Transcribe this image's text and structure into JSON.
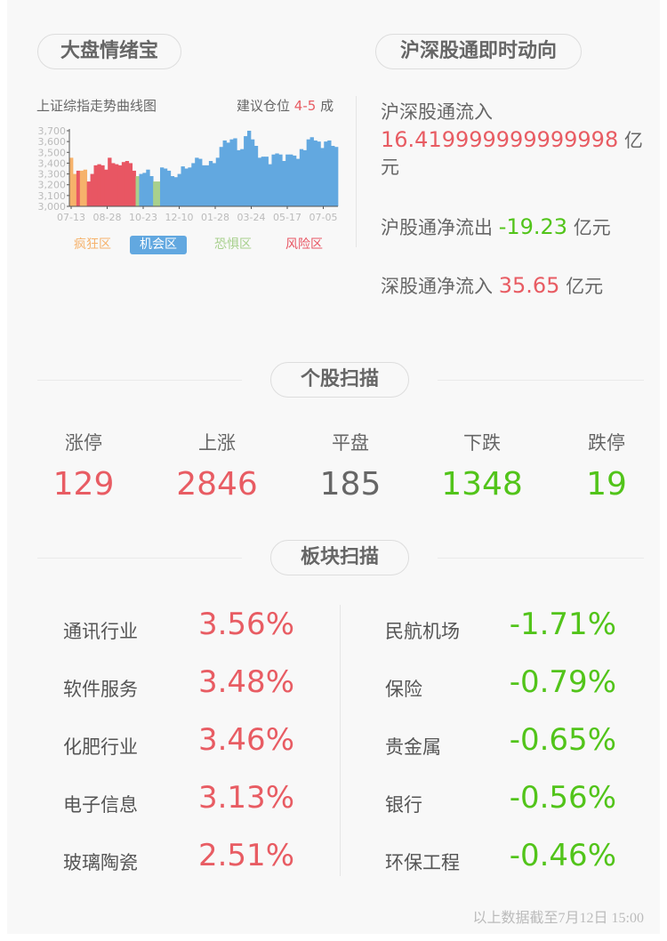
{
  "left_panel": {
    "title": "大盘情绪宝",
    "chart_title": "上证综指走势曲线图",
    "suggest_label": "建议仓位",
    "suggest_value": "4-5",
    "suggest_unit": "成",
    "legend": [
      {
        "label": "疯狂区",
        "color": "#f6b26b"
      },
      {
        "label": "机会区",
        "color": "#62a8e0"
      },
      {
        "label": "恐惧区",
        "color": "#a8d08d"
      },
      {
        "label": "风险区",
        "color": "#e85663"
      }
    ]
  },
  "chart_data": {
    "type": "area",
    "ylim": [
      3000,
      3700
    ],
    "yticks": [
      "3,700",
      "3,600",
      "3,500",
      "3,400",
      "3,300",
      "3,200",
      "3,100",
      "3,000"
    ],
    "xticks": [
      "07-13",
      "08-28",
      "10-23",
      "12-10",
      "01-28",
      "03-24",
      "05-17",
      "07-05"
    ],
    "zone_colors": {
      "crazy": "#f6b26b",
      "opportunity": "#62a8e0",
      "fear": "#a8d08d",
      "risk": "#e85663"
    },
    "values": [
      3450,
      3300,
      3330,
      3330,
      3340,
      3230,
      3300,
      3380,
      3390,
      3380,
      3340,
      3450,
      3400,
      3390,
      3380,
      3410,
      3420,
      3400,
      3330,
      3280,
      3300,
      3310,
      3340,
      3280,
      3230,
      3230,
      3360,
      3350,
      3330,
      3280,
      3270,
      3300,
      3370,
      3350,
      3360,
      3400,
      3450,
      3440,
      3380,
      3380,
      3420,
      3400,
      3450,
      3550,
      3610,
      3590,
      3620,
      3630,
      3520,
      3530,
      3650,
      3700,
      3620,
      3560,
      3450,
      3460,
      3460,
      3390,
      3480,
      3490,
      3480,
      3420,
      3480,
      3480,
      3470,
      3440,
      3530,
      3520,
      3620,
      3640,
      3610,
      3600,
      3540,
      3600,
      3610,
      3560,
      3550
    ],
    "zones": [
      "crazy",
      "crazy",
      "risk",
      "crazy",
      "crazy",
      "risk",
      "risk",
      "risk",
      "risk",
      "risk",
      "risk",
      "risk",
      "risk",
      "risk",
      "risk",
      "risk",
      "risk",
      "risk",
      "risk",
      "fear",
      "opportunity",
      "opportunity",
      "opportunity",
      "opportunity",
      "fear",
      "fear",
      "opportunity",
      "opportunity",
      "opportunity",
      "opportunity",
      "opportunity",
      "opportunity",
      "opportunity",
      "opportunity",
      "opportunity",
      "opportunity",
      "opportunity",
      "opportunity",
      "opportunity",
      "opportunity",
      "opportunity",
      "opportunity",
      "opportunity",
      "opportunity",
      "opportunity",
      "opportunity",
      "opportunity",
      "opportunity",
      "opportunity",
      "opportunity",
      "opportunity",
      "opportunity",
      "opportunity",
      "opportunity",
      "opportunity",
      "opportunity",
      "opportunity",
      "opportunity",
      "opportunity",
      "opportunity",
      "opportunity",
      "opportunity",
      "opportunity",
      "opportunity",
      "opportunity",
      "opportunity",
      "opportunity",
      "opportunity",
      "opportunity",
      "opportunity",
      "opportunity",
      "opportunity",
      "opportunity",
      "opportunity",
      "opportunity",
      "opportunity",
      "opportunity"
    ]
  },
  "right_panel": {
    "title": "沪深股通即时动向",
    "total_label": "沪深股通流入",
    "total_value": "16.419999999999998",
    "unit": "亿元",
    "sh_label": "沪股通净流出",
    "sh_value": "-19.23",
    "sz_label": "深股通净流入",
    "sz_value": "35.65"
  },
  "stocks": {
    "title": "个股扫描",
    "items": [
      {
        "label": "涨停",
        "value": "129",
        "tone": "red"
      },
      {
        "label": "上涨",
        "value": "2846",
        "tone": "red"
      },
      {
        "label": "平盘",
        "value": "185",
        "tone": "gray"
      },
      {
        "label": "下跌",
        "value": "1348",
        "tone": "green"
      },
      {
        "label": "跌停",
        "value": "19",
        "tone": "green"
      }
    ]
  },
  "sectors": {
    "title": "板块扫描",
    "up": [
      {
        "name": "通讯行业",
        "pct": "3.56%"
      },
      {
        "name": "软件服务",
        "pct": "3.48%"
      },
      {
        "name": "化肥行业",
        "pct": "3.46%"
      },
      {
        "name": "电子信息",
        "pct": "3.13%"
      },
      {
        "name": "玻璃陶瓷",
        "pct": "2.51%"
      }
    ],
    "down": [
      {
        "name": "民航机场",
        "pct": "-1.71%"
      },
      {
        "name": "保险",
        "pct": "-0.79%"
      },
      {
        "name": "贵金属",
        "pct": "-0.65%"
      },
      {
        "name": "银行",
        "pct": "-0.56%"
      },
      {
        "name": "环保工程",
        "pct": "-0.46%"
      }
    ]
  },
  "footer": "以上数据截至7月12日 15:00"
}
